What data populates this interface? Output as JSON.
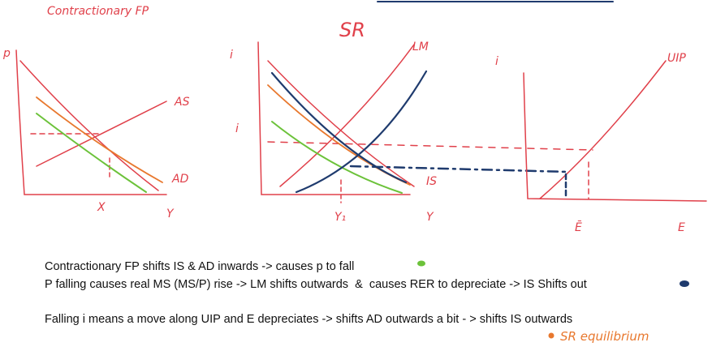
{
  "title": "Contractionary FP",
  "diagrams": [
    {
      "labels": [
        "p",
        "AS",
        "AD",
        "X",
        "Y"
      ]
    },
    {
      "labels": [
        "i",
        "i",
        "SR",
        "LM",
        "IS",
        "Y₁",
        "Y"
      ]
    },
    {
      "labels": [
        "i",
        "UIP",
        "Ē",
        "E"
      ]
    }
  ],
  "notes": [
    "Contractionary FP shifts IS & AD inwards -> causes p to fall",
    "P falling causes real MS (MS/P) rise -> LM shifts outwards  &  causes RER to depreciate -> IS Shifts out",
    "Falling i means a move along UIP and E depreciates -> shifts AD outwards a bit - > shifts IS outwards"
  ],
  "annotation": "SR equilibrium"
}
